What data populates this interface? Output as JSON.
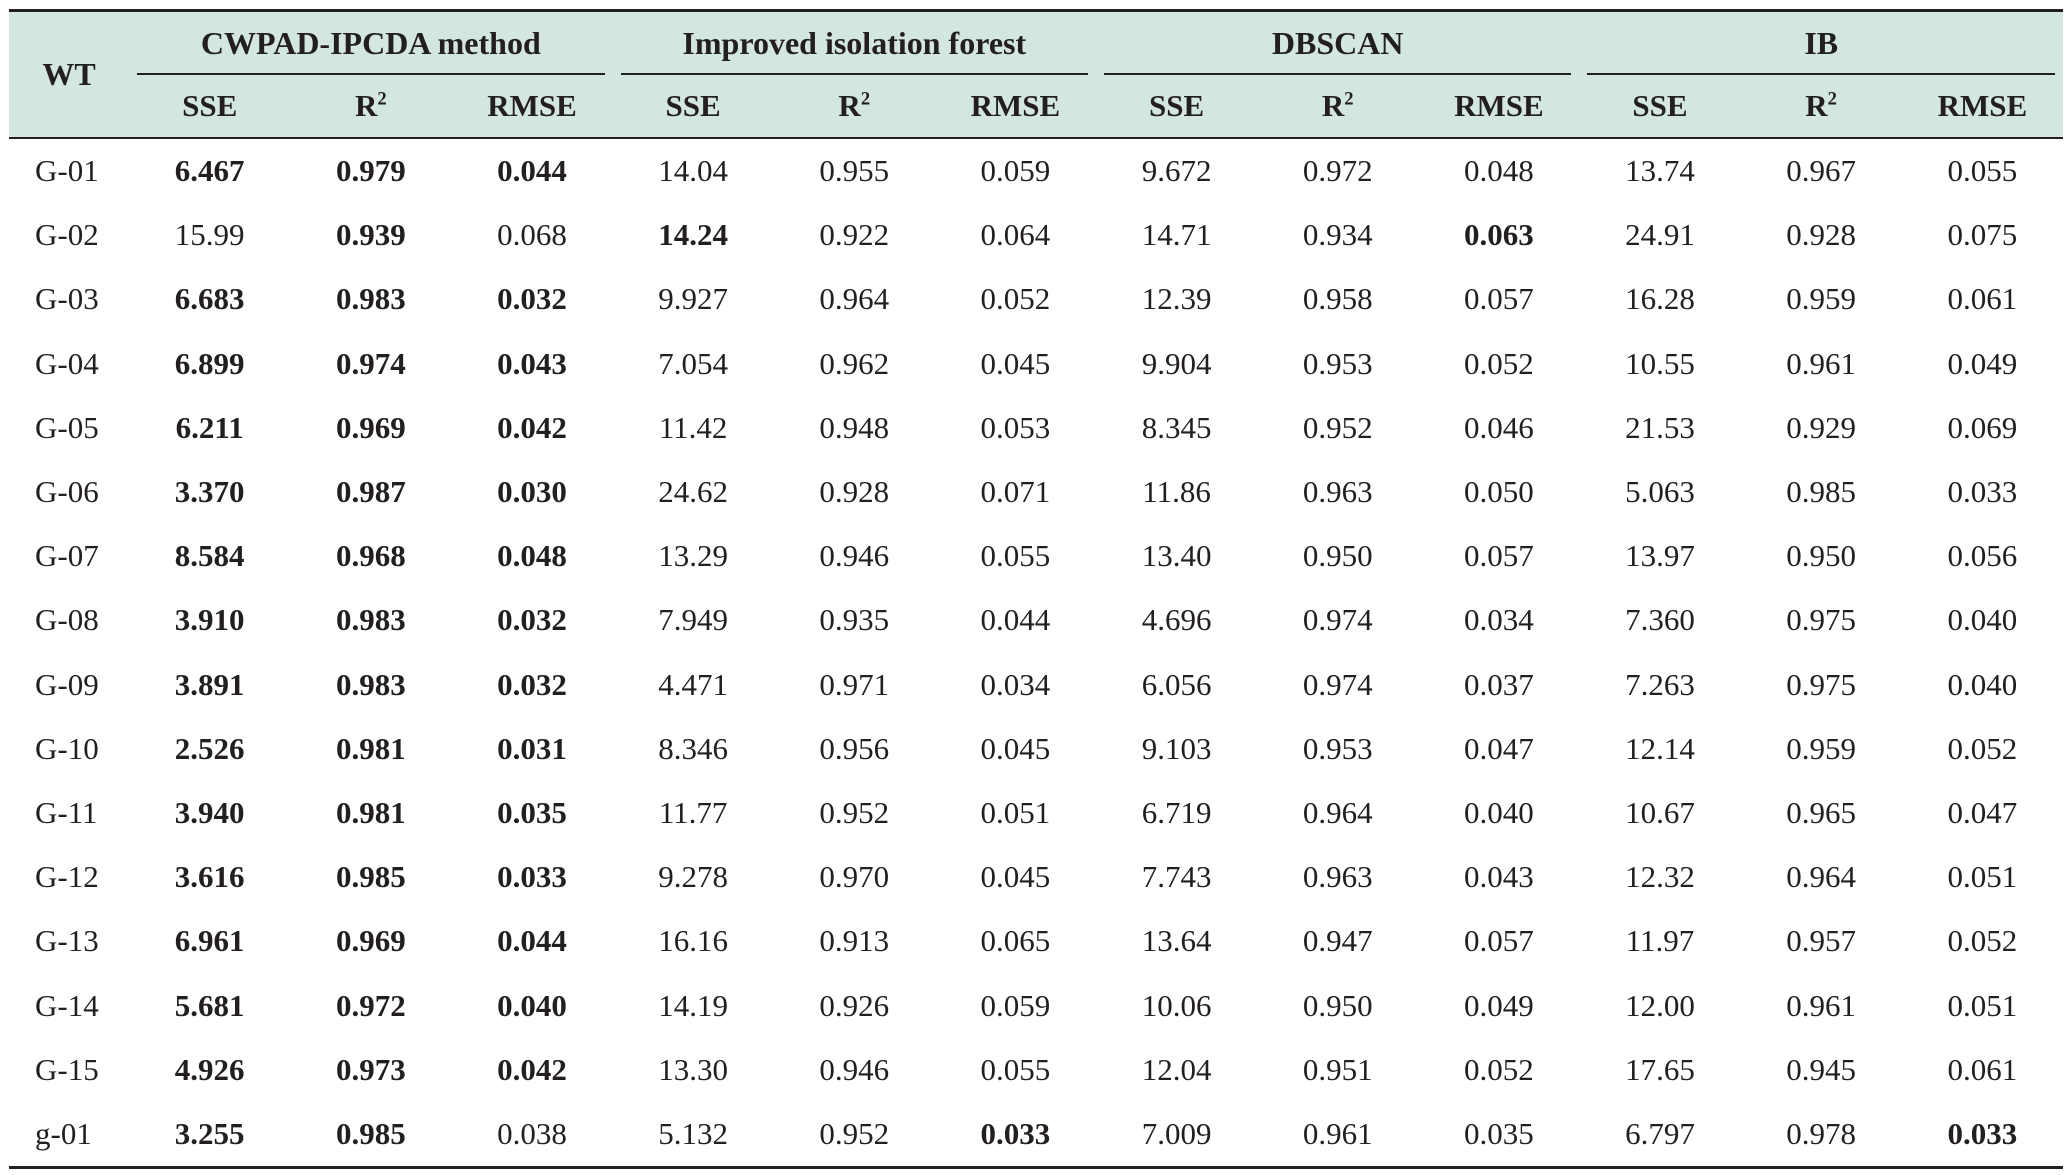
{
  "table": {
    "wt_header": "WT",
    "groups": [
      {
        "name": "CWPAD-IPCDA method"
      },
      {
        "name": "Improved isolation forest"
      },
      {
        "name": "DBSCAN"
      },
      {
        "name": "IB"
      }
    ],
    "metric_headers": {
      "sse": "SSE",
      "r2_base": "R",
      "r2_sup": "2",
      "rmse": "RMSE"
    },
    "rows": [
      {
        "wt": "G-01",
        "cells": [
          {
            "v": "6.467",
            "b": true
          },
          {
            "v": "0.979",
            "b": true
          },
          {
            "v": "0.044",
            "b": true
          },
          {
            "v": "14.04"
          },
          {
            "v": "0.955"
          },
          {
            "v": "0.059"
          },
          {
            "v": "9.672"
          },
          {
            "v": "0.972"
          },
          {
            "v": "0.048"
          },
          {
            "v": "13.74"
          },
          {
            "v": "0.967"
          },
          {
            "v": "0.055"
          }
        ]
      },
      {
        "wt": "G-02",
        "cells": [
          {
            "v": "15.99"
          },
          {
            "v": "0.939",
            "b": true
          },
          {
            "v": "0.068"
          },
          {
            "v": "14.24",
            "b": true
          },
          {
            "v": "0.922"
          },
          {
            "v": "0.064"
          },
          {
            "v": "14.71"
          },
          {
            "v": "0.934"
          },
          {
            "v": "0.063",
            "b": true
          },
          {
            "v": "24.91"
          },
          {
            "v": "0.928"
          },
          {
            "v": "0.075"
          }
        ]
      },
      {
        "wt": "G-03",
        "cells": [
          {
            "v": "6.683",
            "b": true
          },
          {
            "v": "0.983",
            "b": true
          },
          {
            "v": "0.032",
            "b": true
          },
          {
            "v": "9.927"
          },
          {
            "v": "0.964"
          },
          {
            "v": "0.052"
          },
          {
            "v": "12.39"
          },
          {
            "v": "0.958"
          },
          {
            "v": "0.057"
          },
          {
            "v": "16.28"
          },
          {
            "v": "0.959"
          },
          {
            "v": "0.061"
          }
        ]
      },
      {
        "wt": "G-04",
        "cells": [
          {
            "v": "6.899",
            "b": true
          },
          {
            "v": "0.974",
            "b": true
          },
          {
            "v": "0.043",
            "b": true
          },
          {
            "v": "7.054"
          },
          {
            "v": "0.962"
          },
          {
            "v": "0.045"
          },
          {
            "v": "9.904"
          },
          {
            "v": "0.953"
          },
          {
            "v": "0.052"
          },
          {
            "v": "10.55"
          },
          {
            "v": "0.961"
          },
          {
            "v": "0.049"
          }
        ]
      },
      {
        "wt": "G-05",
        "cells": [
          {
            "v": "6.211",
            "b": true
          },
          {
            "v": "0.969",
            "b": true
          },
          {
            "v": "0.042",
            "b": true
          },
          {
            "v": "11.42"
          },
          {
            "v": "0.948"
          },
          {
            "v": "0.053"
          },
          {
            "v": "8.345"
          },
          {
            "v": "0.952"
          },
          {
            "v": "0.046"
          },
          {
            "v": "21.53"
          },
          {
            "v": "0.929"
          },
          {
            "v": "0.069"
          }
        ]
      },
      {
        "wt": "G-06",
        "cells": [
          {
            "v": "3.370",
            "b": true
          },
          {
            "v": "0.987",
            "b": true
          },
          {
            "v": "0.030",
            "b": true
          },
          {
            "v": "24.62"
          },
          {
            "v": "0.928"
          },
          {
            "v": "0.071"
          },
          {
            "v": "11.86"
          },
          {
            "v": "0.963"
          },
          {
            "v": "0.050"
          },
          {
            "v": "5.063"
          },
          {
            "v": "0.985"
          },
          {
            "v": "0.033"
          }
        ]
      },
      {
        "wt": "G-07",
        "cells": [
          {
            "v": "8.584",
            "b": true
          },
          {
            "v": "0.968",
            "b": true
          },
          {
            "v": "0.048",
            "b": true
          },
          {
            "v": "13.29"
          },
          {
            "v": "0.946"
          },
          {
            "v": "0.055"
          },
          {
            "v": "13.40"
          },
          {
            "v": "0.950"
          },
          {
            "v": "0.057"
          },
          {
            "v": "13.97"
          },
          {
            "v": "0.950"
          },
          {
            "v": "0.056"
          }
        ]
      },
      {
        "wt": "G-08",
        "cells": [
          {
            "v": "3.910",
            "b": true
          },
          {
            "v": "0.983",
            "b": true
          },
          {
            "v": "0.032",
            "b": true
          },
          {
            "v": "7.949"
          },
          {
            "v": "0.935"
          },
          {
            "v": "0.044"
          },
          {
            "v": "4.696"
          },
          {
            "v": "0.974"
          },
          {
            "v": "0.034"
          },
          {
            "v": "7.360"
          },
          {
            "v": "0.975"
          },
          {
            "v": "0.040"
          }
        ]
      },
      {
        "wt": "G-09",
        "cells": [
          {
            "v": "3.891",
            "b": true
          },
          {
            "v": "0.983",
            "b": true
          },
          {
            "v": "0.032",
            "b": true
          },
          {
            "v": "4.471"
          },
          {
            "v": "0.971"
          },
          {
            "v": "0.034"
          },
          {
            "v": "6.056"
          },
          {
            "v": "0.974"
          },
          {
            "v": "0.037"
          },
          {
            "v": "7.263"
          },
          {
            "v": "0.975"
          },
          {
            "v": "0.040"
          }
        ]
      },
      {
        "wt": "G-10",
        "cells": [
          {
            "v": "2.526",
            "b": true
          },
          {
            "v": "0.981",
            "b": true
          },
          {
            "v": "0.031",
            "b": true
          },
          {
            "v": "8.346"
          },
          {
            "v": "0.956"
          },
          {
            "v": "0.045"
          },
          {
            "v": "9.103"
          },
          {
            "v": "0.953"
          },
          {
            "v": "0.047"
          },
          {
            "v": "12.14"
          },
          {
            "v": "0.959"
          },
          {
            "v": "0.052"
          }
        ]
      },
      {
        "wt": "G-11",
        "cells": [
          {
            "v": "3.940",
            "b": true
          },
          {
            "v": "0.981",
            "b": true
          },
          {
            "v": "0.035",
            "b": true
          },
          {
            "v": "11.77"
          },
          {
            "v": "0.952"
          },
          {
            "v": "0.051"
          },
          {
            "v": "6.719"
          },
          {
            "v": "0.964"
          },
          {
            "v": "0.040"
          },
          {
            "v": "10.67"
          },
          {
            "v": "0.965"
          },
          {
            "v": "0.047"
          }
        ]
      },
      {
        "wt": "G-12",
        "cells": [
          {
            "v": "3.616",
            "b": true
          },
          {
            "v": "0.985",
            "b": true
          },
          {
            "v": "0.033",
            "b": true
          },
          {
            "v": "9.278"
          },
          {
            "v": "0.970"
          },
          {
            "v": "0.045"
          },
          {
            "v": "7.743"
          },
          {
            "v": "0.963"
          },
          {
            "v": "0.043"
          },
          {
            "v": "12.32"
          },
          {
            "v": "0.964"
          },
          {
            "v": "0.051"
          }
        ]
      },
      {
        "wt": "G-13",
        "cells": [
          {
            "v": "6.961",
            "b": true
          },
          {
            "v": "0.969",
            "b": true
          },
          {
            "v": "0.044",
            "b": true
          },
          {
            "v": "16.16"
          },
          {
            "v": "0.913"
          },
          {
            "v": "0.065"
          },
          {
            "v": "13.64"
          },
          {
            "v": "0.947"
          },
          {
            "v": "0.057"
          },
          {
            "v": "11.97"
          },
          {
            "v": "0.957"
          },
          {
            "v": "0.052"
          }
        ]
      },
      {
        "wt": "G-14",
        "cells": [
          {
            "v": "5.681",
            "b": true
          },
          {
            "v": "0.972",
            "b": true
          },
          {
            "v": "0.040",
            "b": true
          },
          {
            "v": "14.19"
          },
          {
            "v": "0.926"
          },
          {
            "v": "0.059"
          },
          {
            "v": "10.06"
          },
          {
            "v": "0.950"
          },
          {
            "v": "0.049"
          },
          {
            "v": "12.00"
          },
          {
            "v": "0.961"
          },
          {
            "v": "0.051"
          }
        ]
      },
      {
        "wt": "G-15",
        "cells": [
          {
            "v": "4.926",
            "b": true
          },
          {
            "v": "0.973",
            "b": true
          },
          {
            "v": "0.042",
            "b": true
          },
          {
            "v": "13.30"
          },
          {
            "v": "0.946"
          },
          {
            "v": "0.055"
          },
          {
            "v": "12.04"
          },
          {
            "v": "0.951"
          },
          {
            "v": "0.052"
          },
          {
            "v": "17.65"
          },
          {
            "v": "0.945"
          },
          {
            "v": "0.061"
          }
        ]
      },
      {
        "wt": "g-01",
        "cells": [
          {
            "v": "3.255",
            "b": true
          },
          {
            "v": "0.985",
            "b": true
          },
          {
            "v": "0.038"
          },
          {
            "v": "5.132"
          },
          {
            "v": "0.952"
          },
          {
            "v": "0.033",
            "b": true
          },
          {
            "v": "7.009"
          },
          {
            "v": "0.961"
          },
          {
            "v": "0.035"
          },
          {
            "v": "6.797"
          },
          {
            "v": "0.978"
          },
          {
            "v": "0.033",
            "b": true
          }
        ]
      }
    ]
  }
}
